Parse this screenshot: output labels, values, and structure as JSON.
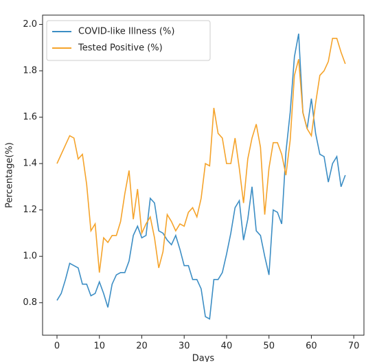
{
  "chart_data": {
    "type": "line",
    "xlabel": "Days",
    "ylabel": "Percentage(%)",
    "x": [
      0,
      1,
      2,
      3,
      4,
      5,
      6,
      7,
      8,
      9,
      10,
      11,
      12,
      13,
      14,
      15,
      16,
      17,
      18,
      19,
      20,
      21,
      22,
      23,
      24,
      25,
      26,
      27,
      28,
      29,
      30,
      31,
      32,
      33,
      34,
      35,
      36,
      37,
      38,
      39,
      40,
      41,
      42,
      43,
      44,
      45,
      46,
      47,
      48,
      49,
      50,
      51,
      52,
      53,
      54,
      55,
      56,
      57,
      58,
      59,
      60,
      61,
      62,
      63,
      64,
      65,
      66,
      67,
      68
    ],
    "series": [
      {
        "name": "COVID-like Illness (%)",
        "color": "#3b8dc4",
        "values": [
          0.81,
          0.84,
          0.9,
          0.97,
          0.96,
          0.95,
          0.88,
          0.88,
          0.83,
          0.84,
          0.89,
          0.84,
          0.78,
          0.88,
          0.92,
          0.93,
          0.93,
          0.98,
          1.09,
          1.13,
          1.08,
          1.09,
          1.25,
          1.23,
          1.11,
          1.1,
          1.07,
          1.05,
          1.09,
          1.03,
          0.96,
          0.96,
          0.9,
          0.9,
          0.86,
          0.74,
          0.73,
          0.9,
          0.9,
          0.93,
          1.01,
          1.1,
          1.21,
          1.24,
          1.07,
          1.16,
          1.3,
          1.11,
          1.09,
          1.0,
          0.92,
          1.2,
          1.19,
          1.14,
          1.45,
          1.62,
          1.86,
          1.96,
          1.62,
          1.55,
          1.68,
          1.53,
          1.44,
          1.43,
          1.32,
          1.4,
          1.43,
          1.3,
          1.35
        ]
      },
      {
        "name": "Tested Positive (%)",
        "color": "#f5a32a",
        "values": [
          1.4,
          1.44,
          1.48,
          1.52,
          1.51,
          1.42,
          1.44,
          1.31,
          1.11,
          1.14,
          0.93,
          1.08,
          1.06,
          1.09,
          1.09,
          1.15,
          1.27,
          1.37,
          1.16,
          1.29,
          1.1,
          1.14,
          1.17,
          1.08,
          0.95,
          1.02,
          1.18,
          1.15,
          1.11,
          1.14,
          1.13,
          1.19,
          1.21,
          1.17,
          1.25,
          1.4,
          1.39,
          1.64,
          1.53,
          1.51,
          1.4,
          1.4,
          1.51,
          1.38,
          1.23,
          1.42,
          1.51,
          1.57,
          1.47,
          1.18,
          1.38,
          1.49,
          1.49,
          1.44,
          1.35,
          1.5,
          1.78,
          1.85,
          1.62,
          1.55,
          1.52,
          1.66,
          1.78,
          1.8,
          1.84,
          1.94,
          1.94,
          1.88,
          1.83
        ]
      }
    ],
    "xlim": [
      -3.4,
      72.4
    ],
    "xticks": [
      0,
      10,
      20,
      30,
      40,
      50,
      60,
      70
    ],
    "ylim": [
      0.66,
      2.04
    ],
    "yticks": [
      {
        "value": 0.8,
        "label": "0.8"
      },
      {
        "value": 1.0,
        "label": "1.0"
      },
      1.2,
      1.4,
      1.6,
      1.8,
      {
        "value": 2.0,
        "label": "2.0"
      }
    ],
    "legend": "upper left",
    "grid": false
  }
}
